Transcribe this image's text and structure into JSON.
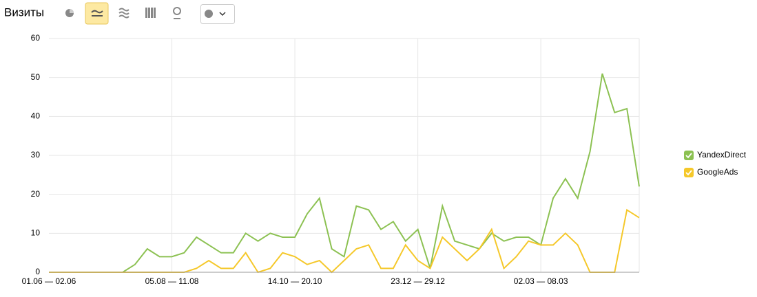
{
  "chart_data": {
    "type": "line",
    "title": "Визиты",
    "categories": [
      "01.06 — 02.06",
      null,
      null,
      null,
      null,
      null,
      null,
      null,
      null,
      null,
      "05.08 — 11.08",
      null,
      null,
      null,
      null,
      null,
      null,
      null,
      null,
      null,
      "14.10 — 20.10",
      null,
      null,
      null,
      null,
      null,
      null,
      null,
      null,
      null,
      "23.12 — 29.12",
      null,
      null,
      null,
      null,
      null,
      null,
      null,
      null,
      null,
      "02.03 — 08.03",
      null,
      null,
      null,
      null,
      null,
      null,
      null,
      null
    ],
    "series": [
      {
        "name": "YandexDirect",
        "color": "#8cc152",
        "values": [
          0,
          0,
          0,
          0,
          0,
          0,
          0,
          2,
          6,
          4,
          4,
          5,
          9,
          7,
          5,
          5,
          10,
          8,
          10,
          9,
          9,
          15,
          19,
          6,
          4,
          17,
          16,
          11,
          13,
          8,
          11,
          1,
          17,
          8,
          7,
          6,
          10,
          8,
          9,
          9,
          7,
          19,
          24,
          19,
          31,
          51,
          41,
          42,
          22
        ]
      },
      {
        "name": "GoogleAds",
        "color": "#f5c82a",
        "values": [
          0,
          0,
          0,
          0,
          0,
          0,
          0,
          0,
          0,
          0,
          0,
          0,
          1,
          3,
          1,
          1,
          5,
          0,
          1,
          5,
          4,
          2,
          3,
          0,
          3,
          6,
          7,
          1,
          1,
          7,
          3,
          1,
          9,
          6,
          3,
          6,
          11,
          1,
          4,
          8,
          7,
          7,
          10,
          7,
          0,
          0,
          0,
          16,
          14
        ]
      }
    ],
    "ylim": [
      0,
      60
    ],
    "yticks": [
      0,
      10,
      20,
      30,
      40,
      50,
      60
    ],
    "grid": true
  }
}
